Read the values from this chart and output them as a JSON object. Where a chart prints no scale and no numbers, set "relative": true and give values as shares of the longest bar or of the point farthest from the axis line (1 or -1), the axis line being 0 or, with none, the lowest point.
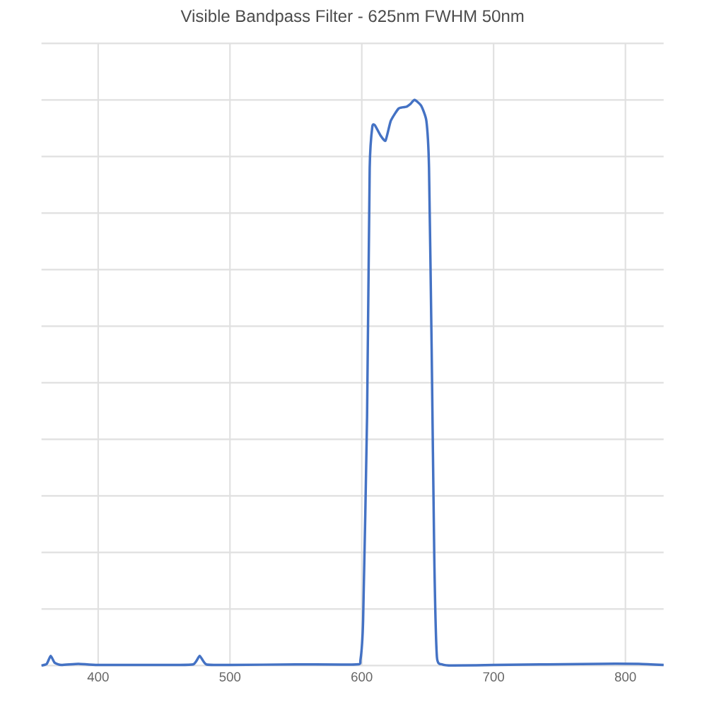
{
  "chart_data": {
    "type": "line",
    "title": "Visible Bandpass Filter - 625nm FWHM 50nm",
    "relative": true,
    "grid": true,
    "xlim": [
      357,
      829
    ],
    "xticks": [
      400,
      500,
      600,
      700,
      800
    ],
    "series": [
      {
        "color": "#4472c4",
        "x": [
          357,
          361,
          364,
          367,
          372,
          385,
          400,
          450,
          472,
          477,
          482,
          500,
          550,
          596,
          599,
          601,
          604,
          606,
          608,
          610,
          614,
          618,
          622,
          628,
          634,
          637,
          640,
          645,
          649,
          651,
          653,
          655,
          657,
          661,
          669,
          700,
          780,
          810,
          829
        ],
        "values": [
          0,
          0.003,
          0.017,
          0.005,
          0.001,
          0.003,
          0.001,
          0.001,
          0.002,
          0.017,
          0.002,
          0.001,
          0.002,
          0.002,
          0.01,
          0.08,
          0.44,
          0.88,
          0.953,
          0.955,
          0.938,
          0.928,
          0.963,
          0.985,
          0.988,
          0.993,
          1,
          0.99,
          0.963,
          0.88,
          0.56,
          0.19,
          0.015,
          0.002,
          0,
          0.001,
          0.003,
          0.003,
          0.001
        ]
      }
    ]
  }
}
